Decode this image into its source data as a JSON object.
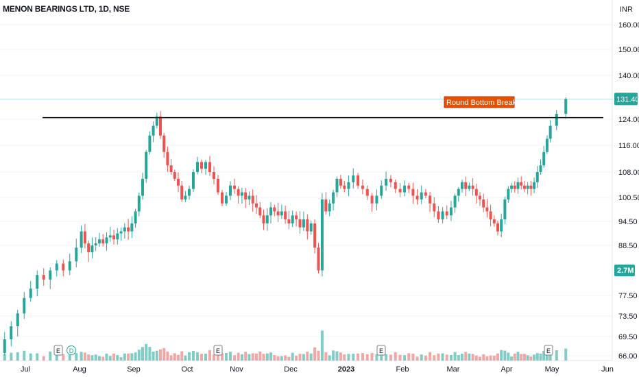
{
  "header": {
    "title": "MENON BEARINGS LTD, 1D, NSE"
  },
  "price_axis": {
    "currency": "INR"
  },
  "colors": {
    "up": "#26a69a",
    "down": "#ef5350",
    "up_volume": "#7fcdc4",
    "down_volume": "#f3a7a4",
    "annotation_bg": "#e65100",
    "annotation_border": "#bf360c"
  },
  "chart_data": {
    "type": "candlestick",
    "title": "MENON BEARINGS LTD, 1D, NSE",
    "y_ticks": [
      "160.00",
      "150.00",
      "140.00",
      "124.00",
      "116.00",
      "108.00",
      "100.50",
      "94.50",
      "88.50",
      "77.50",
      "73.50",
      "69.50",
      "66.00"
    ],
    "x_ticks": [
      "Jul",
      "Aug",
      "Sep",
      "Oct",
      "Nov",
      "Dec",
      "2023",
      "Feb",
      "Mar",
      "Apr",
      "May",
      "Jun"
    ],
    "last_price_label": "131.40",
    "volume_label": "2.7M",
    "resistance_level": 124.6,
    "annotation": "Round Bottom Breakout",
    "event_markers": [
      "E",
      "D",
      "E",
      "E",
      "E"
    ],
    "series": [
      {
        "month": "Jul",
        "points": [
          [
            66.5,
            69
          ],
          [
            69,
            71.5
          ],
          [
            71.5,
            74
          ],
          [
            74,
            77
          ],
          [
            77,
            79
          ],
          [
            79,
            82
          ],
          [
            82,
            81
          ],
          [
            81,
            83
          ],
          [
            83,
            84.5
          ],
          [
            84.5,
            83
          ],
          [
            83,
            85
          ],
          [
            85,
            88
          ]
        ]
      },
      {
        "month": "Aug",
        "points": [
          [
            88,
            92
          ],
          [
            92,
            89
          ],
          [
            89,
            87
          ],
          [
            87,
            88.5
          ],
          [
            88.5,
            89
          ],
          [
            89,
            90
          ],
          [
            90,
            89
          ],
          [
            89,
            90.5
          ],
          [
            90.5,
            91
          ],
          [
            91,
            90
          ],
          [
            90,
            91.5
          ],
          [
            91.5,
            92
          ],
          [
            92,
            93
          ],
          [
            93,
            92
          ],
          [
            92,
            94
          ]
        ]
      },
      {
        "month": "Sep",
        "points": [
          [
            94,
            97
          ],
          [
            97,
            101
          ],
          [
            101,
            106
          ],
          [
            106,
            114
          ],
          [
            114,
            119
          ],
          [
            119,
            122
          ],
          [
            122,
            125
          ],
          [
            125,
            119
          ],
          [
            119,
            114
          ],
          [
            114,
            110
          ],
          [
            110,
            108
          ],
          [
            108,
            106
          ],
          [
            106,
            104
          ],
          [
            104,
            100
          ],
          [
            100,
            101
          ]
        ]
      },
      {
        "month": "Oct",
        "points": [
          [
            101,
            103
          ],
          [
            103,
            108
          ],
          [
            108,
            111
          ],
          [
            111,
            109
          ],
          [
            109,
            111
          ],
          [
            111,
            108
          ],
          [
            108,
            106
          ],
          [
            106,
            102
          ],
          [
            102,
            99
          ],
          [
            99,
            101
          ],
          [
            101,
            104
          ],
          [
            104,
            103
          ]
        ]
      },
      {
        "month": "Nov",
        "points": [
          [
            103,
            101
          ],
          [
            101,
            102
          ],
          [
            102,
            100
          ],
          [
            100,
            101
          ],
          [
            101,
            99
          ],
          [
            99,
            98
          ],
          [
            98,
            96
          ],
          [
            96,
            94
          ],
          [
            94,
            96
          ],
          [
            96,
            98
          ],
          [
            98,
            97
          ],
          [
            97,
            96
          ],
          [
            96,
            97
          ],
          [
            97,
            95
          ],
          [
            95,
            94
          ]
        ]
      },
      {
        "month": "Dec",
        "points": [
          [
            94,
            96
          ],
          [
            96,
            95
          ],
          [
            95,
            93
          ],
          [
            93,
            95
          ],
          [
            95,
            92
          ],
          [
            92,
            94
          ],
          [
            94,
            88
          ],
          [
            88,
            83
          ],
          [
            83,
            100
          ],
          [
            100,
            97
          ],
          [
            97,
            99
          ],
          [
            99,
            102
          ],
          [
            102,
            106
          ],
          [
            106,
            104
          ],
          [
            104,
            103
          ]
        ]
      },
      {
        "month": "2023",
        "points": [
          [
            103,
            105
          ],
          [
            105,
            107
          ],
          [
            107,
            104
          ],
          [
            104,
            103
          ],
          [
            103,
            101
          ],
          [
            101,
            99
          ],
          [
            99,
            101
          ],
          [
            101,
            104
          ],
          [
            104,
            106
          ],
          [
            106,
            105
          ],
          [
            105,
            103
          ],
          [
            103,
            102
          ]
        ]
      },
      {
        "month": "Feb",
        "points": [
          [
            102,
            104
          ],
          [
            104,
            103
          ],
          [
            103,
            101
          ],
          [
            101,
            100
          ],
          [
            100,
            102
          ],
          [
            102,
            101
          ],
          [
            101,
            99
          ],
          [
            99,
            97
          ],
          [
            97,
            95
          ],
          [
            95,
            97
          ],
          [
            97,
            96
          ],
          [
            96,
            98
          ]
        ]
      },
      {
        "month": "Mar",
        "points": [
          [
            98,
            101
          ],
          [
            101,
            103
          ],
          [
            103,
            105
          ],
          [
            105,
            103
          ],
          [
            103,
            104
          ],
          [
            104,
            103
          ],
          [
            103,
            101
          ],
          [
            101,
            100
          ],
          [
            100,
            98
          ],
          [
            98,
            97
          ],
          [
            97,
            95
          ],
          [
            95,
            94
          ],
          [
            94,
            92
          ],
          [
            92,
            95
          ],
          [
            95,
            100
          ]
        ]
      },
      {
        "month": "Apr",
        "points": [
          [
            100,
            103
          ],
          [
            103,
            104
          ],
          [
            104,
            103
          ],
          [
            103,
            105
          ],
          [
            105,
            104
          ],
          [
            104,
            103
          ],
          [
            103,
            104
          ],
          [
            104,
            103
          ],
          [
            103,
            105
          ],
          [
            105,
            108
          ],
          [
            108,
            110
          ],
          [
            110,
            114
          ],
          [
            114,
            118
          ],
          [
            118,
            122
          ]
        ]
      },
      {
        "month": "May",
        "points": [
          [
            122,
            126
          ],
          [
            126,
            131.4
          ]
        ]
      }
    ]
  }
}
